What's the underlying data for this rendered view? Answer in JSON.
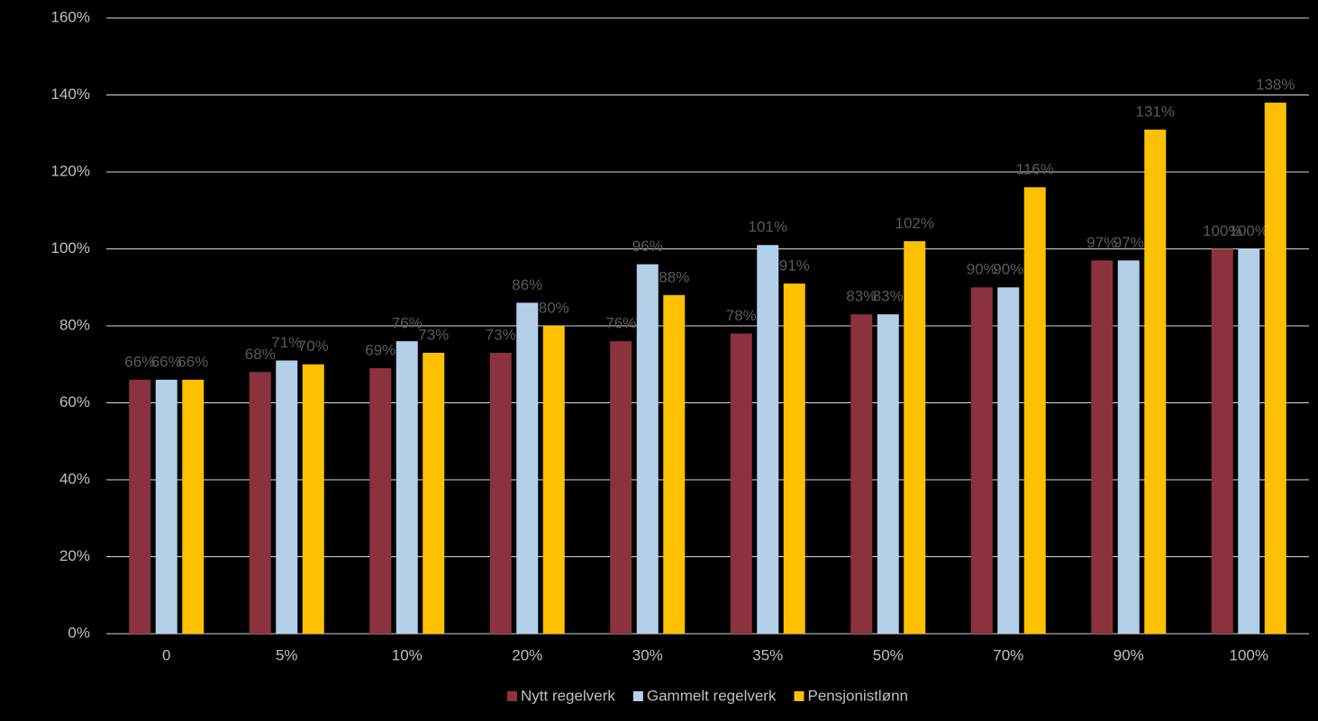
{
  "chart_data": {
    "type": "bar",
    "categories": [
      "0",
      "5%",
      "10%",
      "20%",
      "30%",
      "35%",
      "50%",
      "70%",
      "90%",
      "100%"
    ],
    "series": [
      {
        "name": "Nytt regelverk",
        "color": "#8b323e",
        "values": [
          66,
          68,
          69,
          73,
          76,
          78,
          83,
          90,
          97,
          100
        ],
        "value_labels": [
          "66%",
          "68%",
          "69%",
          "73%",
          "76%",
          "78%",
          "83%",
          "90%",
          "97%",
          "100%"
        ]
      },
      {
        "name": "Gammelt regelverk",
        "color": "#b4cfe8",
        "values": [
          66,
          71,
          76,
          86,
          96,
          101,
          83,
          90,
          97,
          100
        ],
        "value_labels": [
          "66%",
          "71%",
          "76%",
          "86%",
          "96%",
          "101%",
          "83%",
          "90%",
          "97%",
          "100%"
        ]
      },
      {
        "name": "Pensjonistlønn",
        "color": "#ffc000",
        "values": [
          66,
          70,
          73,
          80,
          88,
          91,
          102,
          116,
          131,
          138
        ],
        "value_labels": [
          "66%",
          "70%",
          "73%",
          "80%",
          "88%",
          "91%",
          "102%",
          "116%",
          "131%",
          "138%"
        ]
      }
    ],
    "ylim": [
      0,
      160
    ],
    "yticks": [
      {
        "value": 0,
        "label": "0%"
      },
      {
        "value": 20,
        "label": "20%"
      },
      {
        "value": 40,
        "label": "40%"
      },
      {
        "value": 60,
        "label": "60%"
      },
      {
        "value": 80,
        "label": "80%"
      },
      {
        "value": 100,
        "label": "100%"
      },
      {
        "value": 120,
        "label": "120%"
      },
      {
        "value": 140,
        "label": "140%"
      },
      {
        "value": 160,
        "label": "160%"
      }
    ],
    "grid": true,
    "legend": "bottom"
  }
}
